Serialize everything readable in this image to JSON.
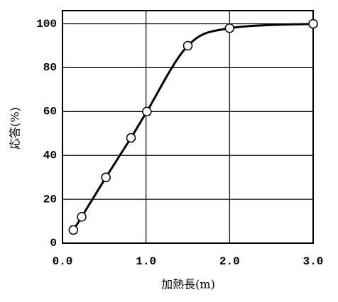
{
  "chart_data": {
    "type": "line",
    "x_label": "加熱長(m)",
    "y_label": "応答(%)",
    "series": [
      {
        "x": [
          0.13,
          0.23,
          0.52,
          0.82,
          1.01,
          1.5,
          2.0,
          3.0
        ],
        "values": [
          6,
          12,
          30,
          48,
          60,
          90,
          98,
          100
        ],
        "color": "#000000"
      }
    ],
    "xlim": [
      0,
      3
    ],
    "xticks": [
      {
        "value": 0,
        "label": "0.0"
      },
      {
        "value": 1,
        "label": "1.0"
      },
      {
        "value": 2,
        "label": "2.0"
      },
      {
        "value": 3,
        "label": "3.0"
      }
    ],
    "ylim": [
      0,
      106
    ],
    "yticks": [
      0,
      20,
      40,
      60,
      80,
      100
    ],
    "grid": true,
    "markers": true,
    "smooth": true
  }
}
